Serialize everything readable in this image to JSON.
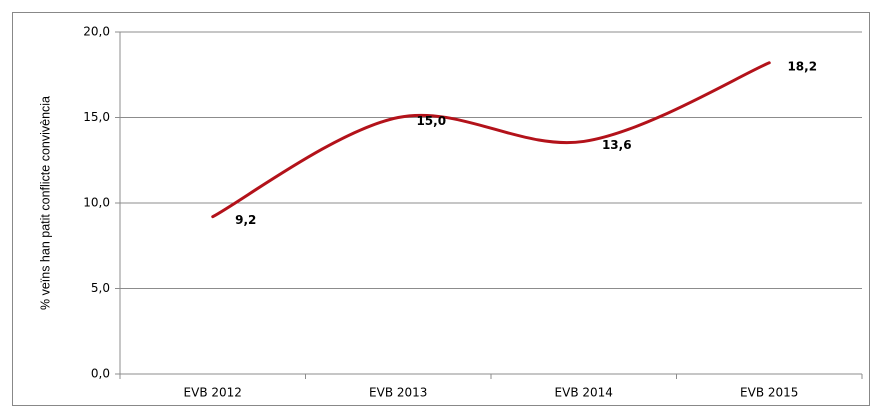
{
  "chart_data": {
    "type": "line",
    "ylabel": "% veïns han patit conflicte convivència",
    "categories": [
      "EVB 2012",
      "EVB 2013",
      "EVB 2014",
      "EVB 2015"
    ],
    "values": [
      9.2,
      15.0,
      13.6,
      18.2
    ],
    "value_labels": [
      "9,2",
      "15,0",
      "13,6",
      "18,2"
    ],
    "color": "#b3121a",
    "smooth": true,
    "ylim": [
      0,
      20
    ],
    "yticks": [
      {
        "value": 0,
        "label": "0,0"
      },
      {
        "value": 5,
        "label": "5,0"
      },
      {
        "value": 10,
        "label": "10,0"
      },
      {
        "value": 15,
        "label": "15,0"
      },
      {
        "value": 20,
        "label": "20,0"
      }
    ],
    "grid": true
  }
}
